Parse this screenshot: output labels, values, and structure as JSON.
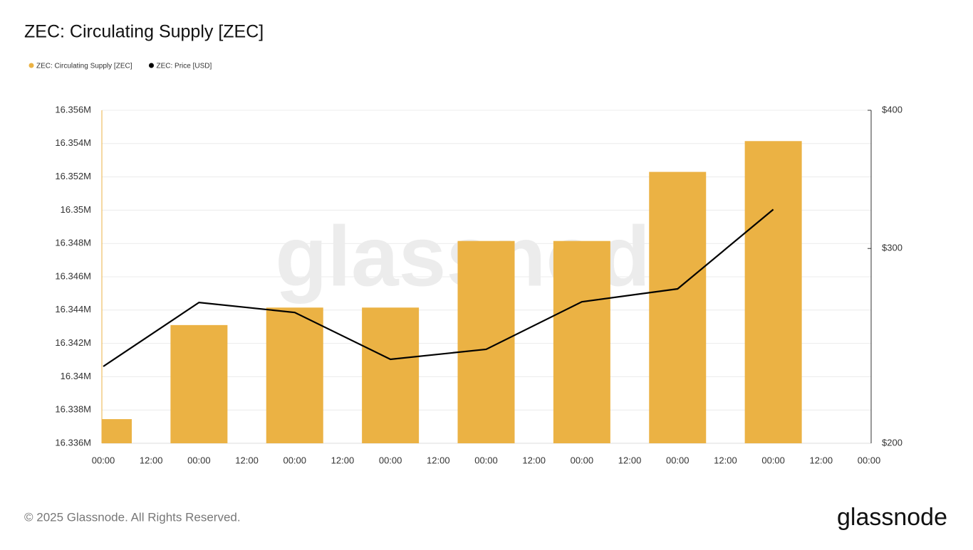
{
  "chart_data": {
    "type": "bar-line",
    "title": "ZEC: Circulating Supply [ZEC]",
    "watermark": "glassnode",
    "footer": "© 2025 Glassnode. All Rights Reserved.",
    "logo": "glassnode",
    "xticks": [
      "00:00",
      "12:00",
      "00:00",
      "12:00",
      "00:00",
      "12:00",
      "00:00",
      "12:00",
      "00:00",
      "12:00",
      "00:00",
      "12:00",
      "00:00",
      "12:00",
      "00:00",
      "12:00",
      "00:00"
    ],
    "ylim": [
      16336000,
      16356000
    ],
    "yticks": [
      {
        "value": 16336000,
        "label": "16.336M"
      },
      {
        "value": 16338000,
        "label": "16.338M"
      },
      {
        "value": 16340000,
        "label": "16.34M"
      },
      {
        "value": 16342000,
        "label": "16.342M"
      },
      {
        "value": 16344000,
        "label": "16.344M"
      },
      {
        "value": 16346000,
        "label": "16.346M"
      },
      {
        "value": 16348000,
        "label": "16.348M"
      },
      {
        "value": 16350000,
        "label": "16.35M"
      },
      {
        "value": 16352000,
        "label": "16.352M"
      },
      {
        "value": 16354000,
        "label": "16.354M"
      },
      {
        "value": 16356000,
        "label": "16.356M"
      }
    ],
    "y2lim": [
      200,
      400
    ],
    "y2log": true,
    "y2ticks": [
      {
        "value": 200,
        "label": "$200"
      },
      {
        "value": 300,
        "label": "$300"
      },
      {
        "value": 400,
        "label": "$400"
      }
    ],
    "grid": true,
    "series": [
      {
        "name": "ZEC: Circulating Supply [ZEC]",
        "type": "bar",
        "color": "#ebb244",
        "values": [
          16337450,
          16343100,
          16344150,
          16344150,
          16348150,
          16348150,
          16352300,
          16354150
        ]
      },
      {
        "name": "ZEC: Price [USD]",
        "type": "line",
        "axis": "y2",
        "color": "#000000",
        "values": [
          234.7,
          268.1,
          262.6,
          238.2,
          243.2,
          268.5,
          275.8,
          325.4
        ]
      }
    ]
  }
}
